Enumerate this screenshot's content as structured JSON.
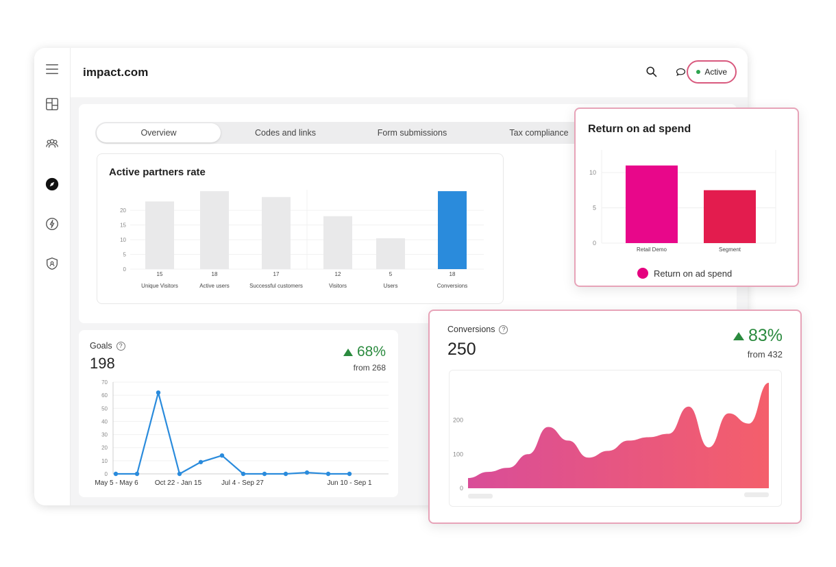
{
  "app": {
    "brand": "impact.com",
    "status": "Active",
    "tabs": [
      "Overview",
      "Codes and links",
      "Form submissions",
      "Tax compliance"
    ],
    "sidebar_icons": [
      "menu-icon",
      "dashboard-icon",
      "partners-icon",
      "discover-icon",
      "automation-icon",
      "security-icon"
    ],
    "topbar_icons": [
      "search-icon",
      "chat-icon",
      "bell-icon"
    ],
    "colors": {
      "accent": "#d8587d",
      "highlight_bar": "#2a8bdc",
      "gray_bar": "#e9e9ea",
      "positive": "#2a8a3e",
      "line": "#2a8bdc"
    }
  },
  "active_partners": {
    "title": "Active partners rate"
  },
  "goals": {
    "label": "Goals",
    "help": "?",
    "value": "198",
    "change_percent": "68%",
    "from_text": "from 268"
  },
  "roas": {
    "title": "Return on ad spend",
    "legend": "Return on ad spend"
  },
  "conversions": {
    "label": "Conversions",
    "help": "?",
    "value": "250",
    "change_percent": "83%",
    "from_text": "from 432"
  },
  "chart_data": [
    {
      "id": "active-partners",
      "type": "bar",
      "title": "Active partners rate",
      "categories": [
        "Unique Visitors",
        "Active users",
        "Successful customers",
        "Visitors",
        "Users",
        "Conversions"
      ],
      "values": [
        15,
        18,
        17,
        12,
        5,
        18
      ],
      "bar_values": [
        23,
        26.5,
        24.5,
        18,
        10.5,
        26.5
      ],
      "highlight_index": 5,
      "yticks": [
        0,
        5,
        10,
        15,
        20
      ],
      "ylim": [
        0,
        27
      ]
    },
    {
      "id": "goals",
      "type": "line",
      "title": "Goals",
      "x_labels": [
        "May 5 - May 6",
        "Oct 22 - Jan 15",
        "Jul 4 - Sep 27",
        "Jun 10 - Sep 1"
      ],
      "values": [
        0,
        0,
        62,
        0,
        9,
        14,
        0,
        0,
        0,
        1,
        0,
        0
      ],
      "yticks": [
        0,
        10,
        20,
        30,
        40,
        50,
        60,
        70
      ],
      "ylim": [
        0,
        70
      ]
    },
    {
      "id": "roas",
      "type": "bar",
      "title": "Return on ad spend",
      "categories": [
        "Retail Demo",
        "Segment"
      ],
      "values": [
        11,
        7.5
      ],
      "colors": [
        "#e8078a",
        "#e31c4e"
      ],
      "yticks": [
        0,
        5,
        10
      ],
      "ylim": [
        0,
        13.2
      ]
    },
    {
      "id": "conversions",
      "type": "area",
      "title": "Conversions",
      "values": [
        30,
        48,
        60,
        100,
        180,
        140,
        90,
        110,
        140,
        150,
        160,
        240,
        120,
        220,
        190,
        310
      ],
      "yticks": [
        0,
        100,
        200
      ],
      "ylim": [
        0,
        330
      ]
    }
  ]
}
